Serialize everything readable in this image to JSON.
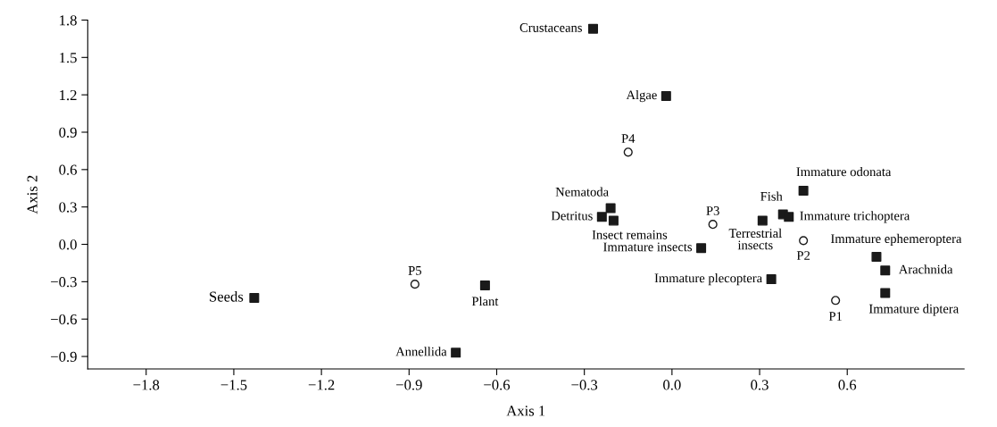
{
  "chart_data": {
    "type": "scatter",
    "xlabel": "Axis 1",
    "ylabel": "Axis 2",
    "xlim": [
      -2.0,
      1.0
    ],
    "ylim": [
      -1.0,
      1.8
    ],
    "xticks": [
      {
        "value": -1.8,
        "label": "−1.8"
      },
      {
        "value": -1.5,
        "label": "−1.5"
      },
      {
        "value": -1.2,
        "label": "−1.2"
      },
      {
        "value": -0.9,
        "label": "−0.9"
      },
      {
        "value": -0.6,
        "label": "−0.6"
      },
      {
        "value": -0.3,
        "label": "−0.3"
      },
      {
        "value": 0.0,
        "label": "0.0"
      },
      {
        "value": 0.3,
        "label": "0.3"
      },
      {
        "value": 0.6,
        "label": "0.6"
      }
    ],
    "yticks": [
      {
        "value": -0.9,
        "label": "−0.9"
      },
      {
        "value": -0.6,
        "label": "−0.6"
      },
      {
        "value": -0.3,
        "label": "−0.3"
      },
      {
        "value": 0.0,
        "label": "0.0"
      },
      {
        "value": 0.3,
        "label": "0.3"
      },
      {
        "value": 0.6,
        "label": "0.6"
      },
      {
        "value": 0.9,
        "label": "0.9"
      },
      {
        "value": 1.2,
        "label": "1.2"
      },
      {
        "value": 1.5,
        "label": "1.5"
      },
      {
        "value": 1.8,
        "label": "1.8"
      }
    ],
    "grid": false,
    "legend": false,
    "series": [
      {
        "marker": "square",
        "color": "#1a1a1a",
        "x": [
          -0.27,
          -0.02,
          -0.21,
          -0.24,
          -0.2,
          -0.64,
          -0.74,
          -1.43,
          0.45,
          0.38,
          0.4,
          0.31,
          0.1,
          0.34,
          0.7,
          0.73,
          0.73
        ],
        "values": [
          1.73,
          1.19,
          0.29,
          0.22,
          0.19,
          -0.33,
          -0.87,
          -0.43,
          0.43,
          0.24,
          0.22,
          0.19,
          -0.03,
          -0.28,
          -0.1,
          -0.21,
          -0.39
        ]
      },
      {
        "marker": "circle",
        "color": "#1a1a1a",
        "x": [
          -0.15,
          -0.88,
          0.14,
          0.45,
          0.56
        ],
        "values": [
          0.74,
          -0.32,
          0.16,
          0.03,
          -0.45
        ]
      }
    ],
    "annotations": [
      {
        "text": "Crustaceans",
        "x": -0.27,
        "y": 1.73
      },
      {
        "text": "Algae",
        "x": -0.02,
        "y": 1.19
      },
      {
        "text": "Nematoda",
        "x": -0.21,
        "y": 0.29
      },
      {
        "text": "Detritus",
        "x": -0.24,
        "y": 0.22
      },
      {
        "text": "Insect remains",
        "x": -0.2,
        "y": 0.19
      },
      {
        "text": "Plant",
        "x": -0.64,
        "y": -0.33
      },
      {
        "text": "Annellida",
        "x": -0.74,
        "y": -0.87
      },
      {
        "text": "Seeds",
        "x": -1.43,
        "y": -0.43
      },
      {
        "text": "Immature odonata",
        "x": 0.45,
        "y": 0.43
      },
      {
        "text": "Fish",
        "x": 0.38,
        "y": 0.24
      },
      {
        "text": "Immature trichoptera",
        "x": 0.4,
        "y": 0.22
      },
      {
        "text": "Terrestrial\ninsects",
        "x": 0.31,
        "y": 0.19
      },
      {
        "text": "Immature insects",
        "x": 0.1,
        "y": -0.03
      },
      {
        "text": "Immature plecoptera",
        "x": 0.34,
        "y": -0.28
      },
      {
        "text": "Immature ephemeroptera",
        "x": 0.7,
        "y": -0.1
      },
      {
        "text": "Arachnida",
        "x": 0.73,
        "y": -0.21
      },
      {
        "text": "Immature diptera",
        "x": 0.73,
        "y": -0.39
      },
      {
        "text": "P4",
        "x": -0.15,
        "y": 0.74
      },
      {
        "text": "P5",
        "x": -0.88,
        "y": -0.32
      },
      {
        "text": "P3",
        "x": 0.14,
        "y": 0.16
      },
      {
        "text": "P2",
        "x": 0.45,
        "y": 0.03
      },
      {
        "text": "P1",
        "x": 0.56,
        "y": -0.45
      }
    ]
  }
}
